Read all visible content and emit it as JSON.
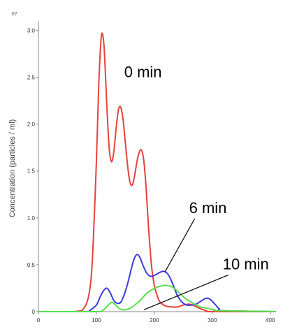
{
  "chart_data": {
    "type": "line",
    "title": "",
    "xlabel": "",
    "ylabel": "Concentration (particles / ml)",
    "y_multiplier_label": "E7",
    "xlim": [
      0,
      410
    ],
    "ylim": [
      0,
      3.1
    ],
    "x_ticks": [
      "0",
      "100",
      "200",
      "300",
      "400"
    ],
    "y_ticks": [
      "0",
      "0.5",
      "1.0",
      "1.5",
      "2.0",
      "2.5",
      "3.0"
    ],
    "grid": false,
    "series": [
      {
        "color": "#e8413a",
        "x": [
          0,
          60,
          80,
          90,
          95,
          100,
          104,
          108,
          111,
          114,
          118,
          122,
          126,
          130,
          134,
          138,
          142,
          146,
          150,
          154,
          158,
          162,
          166,
          170,
          174,
          178,
          182,
          186,
          190,
          195,
          200,
          205,
          210,
          220,
          230,
          240,
          250,
          260,
          270,
          280,
          290,
          300,
          410
        ],
        "y": [
          0,
          0.0,
          0.05,
          0.3,
          0.8,
          1.6,
          2.4,
          2.9,
          2.95,
          2.75,
          2.2,
          1.75,
          1.6,
          1.7,
          1.95,
          2.15,
          2.18,
          2.05,
          1.8,
          1.55,
          1.38,
          1.35,
          1.45,
          1.6,
          1.7,
          1.72,
          1.6,
          1.3,
          0.9,
          0.5,
          0.28,
          0.17,
          0.1,
          0.06,
          0.05,
          0.05,
          0.07,
          0.08,
          0.06,
          0.03,
          0.01,
          0.0,
          0.0
        ]
      },
      {
        "color": "#3b3bdd",
        "x": [
          0,
          80,
          90,
          100,
          106,
          112,
          118,
          124,
          130,
          136,
          142,
          148,
          154,
          160,
          165,
          170,
          175,
          180,
          186,
          192,
          198,
          204,
          210,
          216,
          222,
          228,
          234,
          240,
          248,
          256,
          264,
          272,
          280,
          288,
          294,
          300,
          306,
          312,
          320,
          410
        ],
        "y": [
          0,
          0.0,
          0.02,
          0.07,
          0.15,
          0.22,
          0.25,
          0.2,
          0.12,
          0.09,
          0.1,
          0.18,
          0.3,
          0.45,
          0.56,
          0.61,
          0.58,
          0.5,
          0.42,
          0.38,
          0.38,
          0.4,
          0.42,
          0.43,
          0.41,
          0.35,
          0.26,
          0.17,
          0.1,
          0.07,
          0.07,
          0.08,
          0.11,
          0.14,
          0.14,
          0.11,
          0.07,
          0.03,
          0.01,
          0.0
        ]
      },
      {
        "color": "#55e04a",
        "x": [
          0,
          100,
          110,
          116,
          122,
          127,
          132,
          138,
          144,
          150,
          156,
          162,
          168,
          174,
          180,
          186,
          192,
          198,
          204,
          210,
          216,
          222,
          228,
          234,
          240,
          248,
          256,
          264,
          272,
          280,
          288,
          296,
          304,
          312,
          410
        ],
        "y": [
          0,
          0.0,
          0.01,
          0.04,
          0.08,
          0.1,
          0.08,
          0.04,
          0.02,
          0.02,
          0.03,
          0.05,
          0.08,
          0.11,
          0.15,
          0.19,
          0.22,
          0.24,
          0.26,
          0.27,
          0.28,
          0.28,
          0.27,
          0.25,
          0.22,
          0.17,
          0.13,
          0.1,
          0.07,
          0.05,
          0.04,
          0.03,
          0.02,
          0.01,
          0.0
        ]
      }
    ],
    "annotations": [
      {
        "text": "0 min",
        "x": 148,
        "y": 2.5
      },
      {
        "text": "6 min",
        "x": 260,
        "y": 1.05,
        "arrow_to": [
          218,
          0.42
        ]
      },
      {
        "text": "10 min",
        "x": 318,
        "y": 0.45,
        "arrow_to": [
          182,
          0.02
        ]
      }
    ]
  }
}
